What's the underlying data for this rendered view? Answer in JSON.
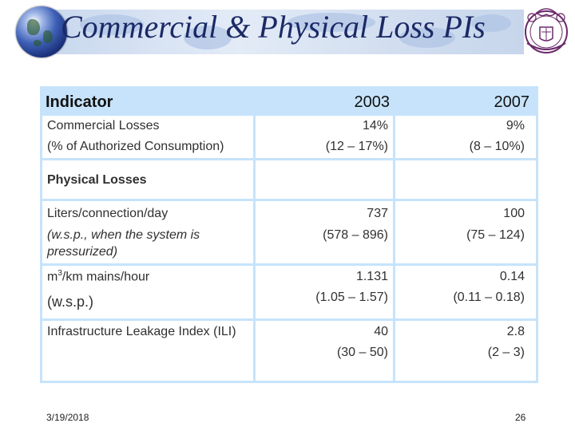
{
  "slide": {
    "title": "Commercial & Physical Loss PIs",
    "date": "3/19/2018",
    "page_number": "26"
  },
  "table": {
    "headers": [
      "Indicator",
      "2003",
      "2007"
    ],
    "rows": [
      {
        "label_lines": [
          "Commercial Losses",
          "(% of Authorized Consumption)"
        ],
        "v2003": [
          "14%",
          "(12 – 17%)"
        ],
        "v2007": [
          "9%",
          "(8 – 10%)"
        ]
      },
      {
        "label_lines": [
          "Physical Losses"
        ],
        "v2003": [],
        "v2007": []
      },
      {
        "label_lines": [
          "Liters/connection/day",
          "(w.s.p., when the system is",
          "pressurized)"
        ],
        "v2003": [
          "737",
          "(578 – 896)"
        ],
        "v2007": [
          "100",
          "(75 – 124)"
        ]
      },
      {
        "label_prefix": "m",
        "label_sup": "3",
        "label_suffix": "/km mains/hour",
        "label_line2": "(w.s.p.)",
        "v2003": [
          "1.131",
          "(1.05 – 1.57)"
        ],
        "v2007": [
          "0.14",
          "(0.11 – 0.18)"
        ]
      },
      {
        "label_lines": [
          "Infrastructure Leakage Index (ILI)"
        ],
        "v2003": [
          "40",
          "(30 – 50)"
        ],
        "v2007": [
          "2.8",
          "(2 – 3)"
        ]
      }
    ]
  },
  "colors": {
    "title": "#1b2a66",
    "table_border": "#c6e3fb",
    "header_fill": "#c6e3fb"
  },
  "icons": [
    "globe-icon",
    "university-seal-icon"
  ]
}
